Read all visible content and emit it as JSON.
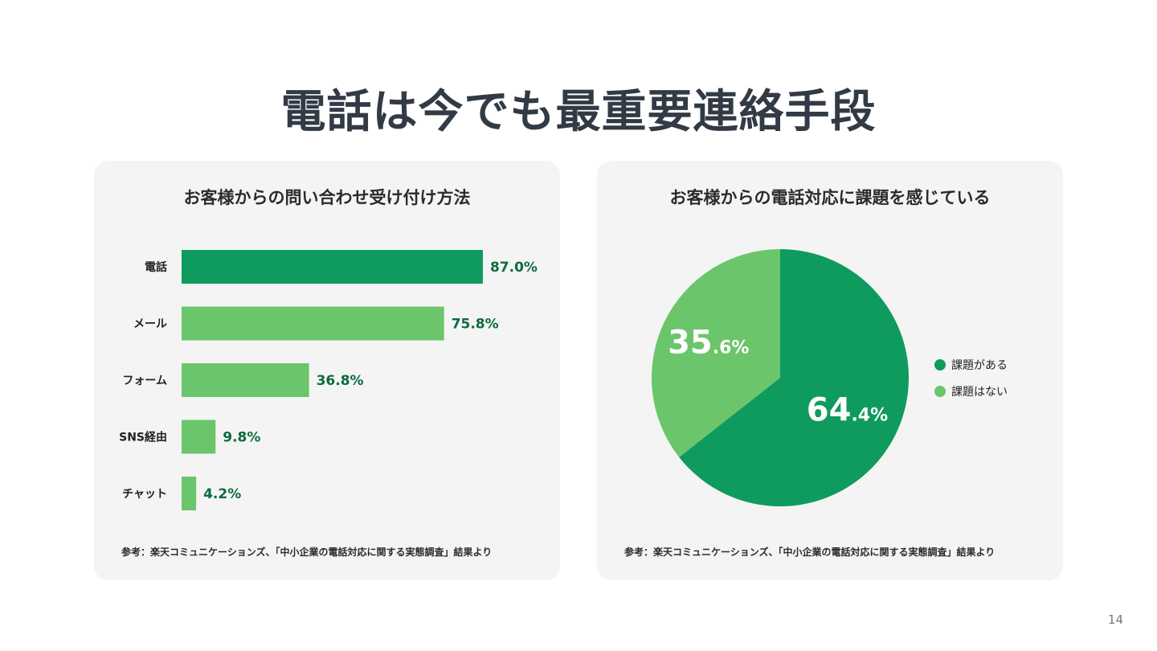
{
  "slide": {
    "title": "電話は今でも最重要連絡手段",
    "page_number": "14"
  },
  "colors": {
    "dark_green": "#0f9a5e",
    "light_green": "#6bc56b",
    "value_text": "#0b6b3f",
    "card_bg": "#f4f4f4"
  },
  "chart_data": [
    {
      "type": "bar",
      "orientation": "horizontal",
      "title": "お客様からの問い合わせ受け付け方法",
      "categories": [
        "電話",
        "メール",
        "フォーム",
        "SNS経由",
        "チャット"
      ],
      "values": [
        87.0,
        75.8,
        36.8,
        9.8,
        4.2
      ],
      "value_labels": [
        "87.0%",
        "75.8%",
        "36.8%",
        "9.8%",
        "4.2%"
      ],
      "highlight_index": 0,
      "xlim": [
        0,
        100
      ],
      "grid": false,
      "note": "参考：楽天コミュニケーションズ、「中小企業の電話対応に関する実態調査」結果より"
    },
    {
      "type": "pie",
      "title": "お客様からの電話対応に課題を感じている",
      "labels": [
        "課題がある",
        "課題はない"
      ],
      "values": [
        64.4,
        35.6
      ],
      "label_int": [
        "64",
        "35"
      ],
      "label_dec": [
        ".4%",
        ".6%"
      ],
      "legend_position": "right",
      "note": "参考：楽天コミュニケーションズ、「中小企業の電話対応に関する実態調査」結果より"
    }
  ]
}
